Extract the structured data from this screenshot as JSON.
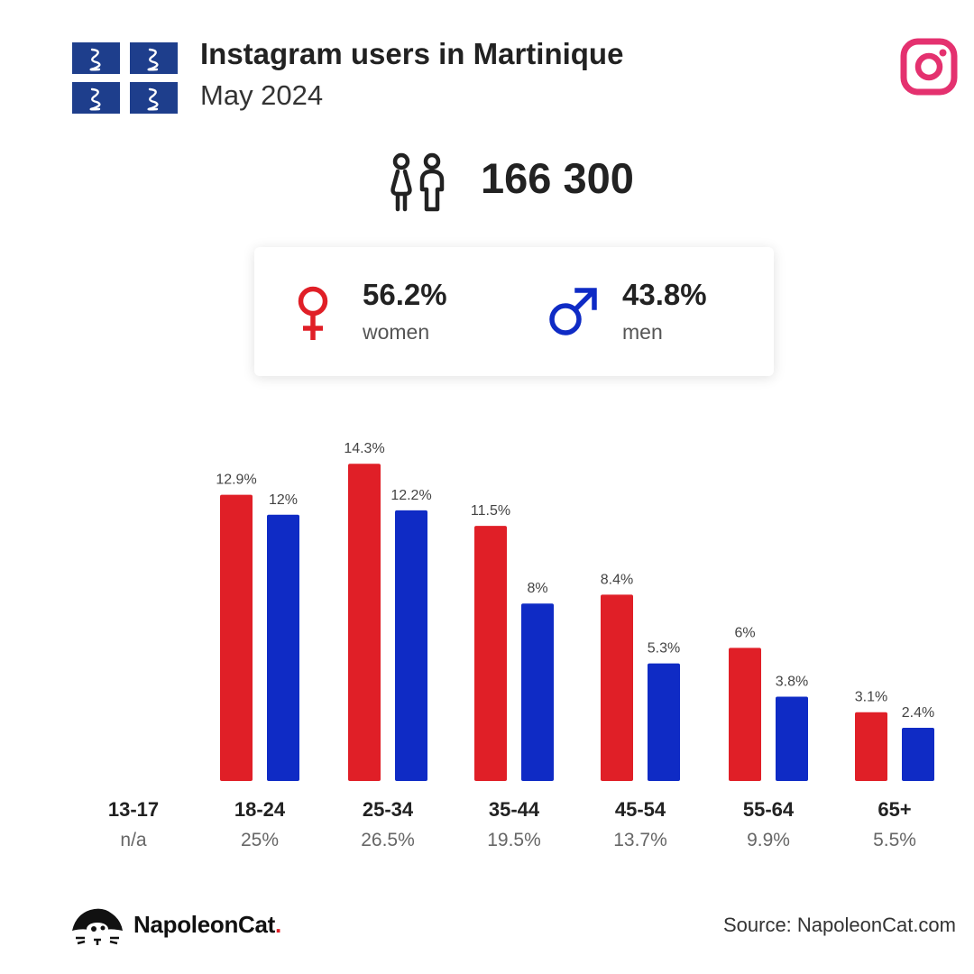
{
  "header": {
    "title": "Instagram users in Martinique",
    "subtitle": "May 2024"
  },
  "total_users": "166 300",
  "gender": {
    "women": {
      "pct": "56.2%",
      "label": "women",
      "color": "#e01f27"
    },
    "men": {
      "pct": "43.8%",
      "label": "men",
      "color": "#0f2bc5"
    }
  },
  "colors": {
    "women": "#e01f27",
    "men": "#0f2bc5",
    "instagram": "#e4316f",
    "flag_blue": "#1e3e8c"
  },
  "icons": [
    "martinique-flag-icon",
    "instagram-icon",
    "people-icon",
    "female-symbol-icon",
    "male-symbol-icon",
    "napoleoncat-logo-icon"
  ],
  "chart_data": {
    "type": "bar",
    "categories": [
      "13-17",
      "18-24",
      "25-34",
      "35-44",
      "45-54",
      "55-64",
      "65+"
    ],
    "category_totals": [
      "n/a",
      "25%",
      "26.5%",
      "19.5%",
      "13.7%",
      "9.9%",
      "5.5%"
    ],
    "series": [
      {
        "name": "women",
        "values": [
          null,
          12.9,
          14.3,
          11.5,
          8.4,
          6,
          3.1
        ],
        "labels": [
          "",
          "12.9%",
          "14.3%",
          "11.5%",
          "8.4%",
          "6%",
          "3.1%"
        ]
      },
      {
        "name": "men",
        "values": [
          null,
          12,
          12.2,
          8,
          5.3,
          3.8,
          2.4
        ],
        "labels": [
          "",
          "12%",
          "12.2%",
          "8%",
          "5.3%",
          "3.8%",
          "2.4%"
        ]
      }
    ],
    "unit": "%"
  },
  "footer": {
    "brand": "NapoleonCat",
    "brand_dot": ".",
    "source": "Source: NapoleonCat.com"
  }
}
